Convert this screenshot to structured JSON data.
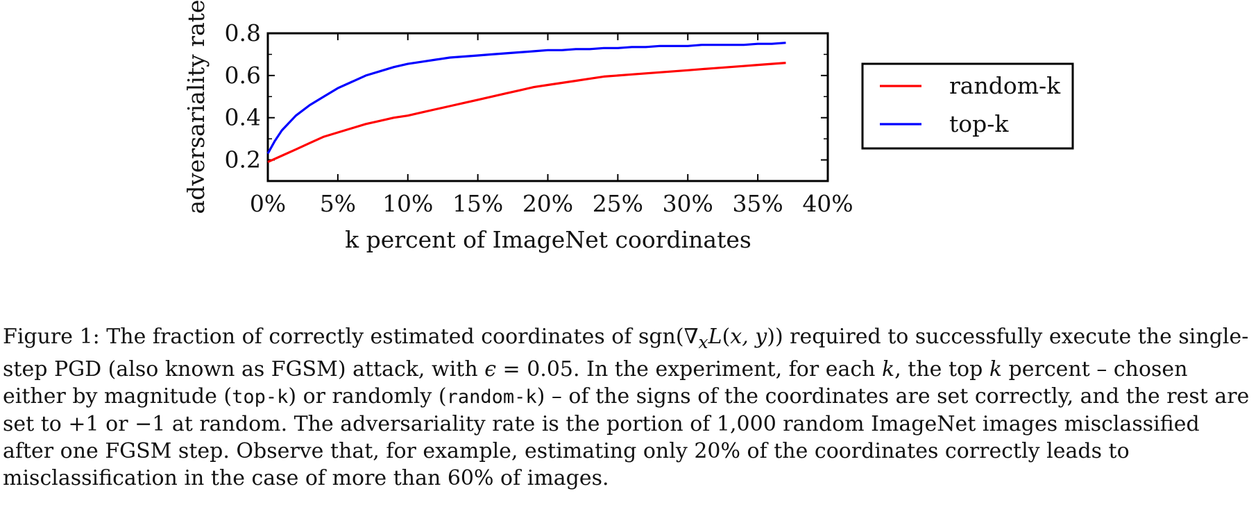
{
  "chart_data": {
    "type": "line",
    "title": "",
    "xlabel": "k percent of ImageNet coordinates",
    "ylabel": "adversariality rate",
    "xlim": [
      0,
      40
    ],
    "ylim": [
      0.1,
      0.8
    ],
    "x_ticks": [
      "0%",
      "5%",
      "10%",
      "15%",
      "20%",
      "25%",
      "30%",
      "35%",
      "40%"
    ],
    "y_ticks": [
      "0.2",
      "0.4",
      "0.6",
      "0.8"
    ],
    "grid": false,
    "legend_position": "right, outside plot",
    "series": [
      {
        "name": "random-k",
        "color": "#ff0000",
        "x": [
          0,
          1,
          2,
          3,
          4,
          5,
          6,
          7,
          8,
          9,
          10,
          11,
          12,
          13,
          14,
          15,
          16,
          17,
          18,
          19,
          20,
          21,
          22,
          23,
          24,
          25,
          26,
          27,
          28,
          29,
          30,
          31,
          32,
          33,
          34,
          35,
          36,
          37
        ],
        "values": [
          0.19,
          0.22,
          0.25,
          0.28,
          0.31,
          0.33,
          0.35,
          0.37,
          0.385,
          0.4,
          0.41,
          0.425,
          0.44,
          0.455,
          0.47,
          0.485,
          0.5,
          0.515,
          0.53,
          0.545,
          0.555,
          0.565,
          0.575,
          0.585,
          0.595,
          0.6,
          0.605,
          0.61,
          0.615,
          0.62,
          0.625,
          0.63,
          0.635,
          0.64,
          0.645,
          0.65,
          0.655,
          0.66
        ]
      },
      {
        "name": "top-k",
        "color": "#0000ff",
        "x": [
          0,
          0.5,
          1,
          2,
          3,
          4,
          5,
          6,
          7,
          8,
          9,
          10,
          11,
          12,
          13,
          14,
          15,
          16,
          17,
          18,
          19,
          20,
          21,
          22,
          23,
          24,
          25,
          26,
          27,
          28,
          29,
          30,
          31,
          32,
          33,
          34,
          35,
          36,
          37
        ],
        "values": [
          0.23,
          0.29,
          0.34,
          0.41,
          0.46,
          0.5,
          0.54,
          0.57,
          0.6,
          0.62,
          0.64,
          0.655,
          0.665,
          0.675,
          0.685,
          0.69,
          0.695,
          0.7,
          0.705,
          0.71,
          0.715,
          0.72,
          0.72,
          0.725,
          0.725,
          0.73,
          0.73,
          0.735,
          0.735,
          0.74,
          0.74,
          0.74,
          0.745,
          0.745,
          0.745,
          0.745,
          0.75,
          0.75,
          0.755
        ]
      }
    ]
  },
  "caption": {
    "p1": "Figure 1: The fraction of correctly estimated coordinates of sgn(∇",
    "p2": "x",
    "p3": "L",
    "p4": "(",
    "p5": "x, y",
    "p6": ")) required to successfully execute the single-step PGD (also known as FGSM) attack, with ",
    "p7": "ϵ",
    "p8": " = 0.05. In the experiment, for each ",
    "p9": "k",
    "p10": ", the top ",
    "p11": "k",
    "p12": " percent – chosen either by magnitude (",
    "p13": "top-k",
    "p14": ") or randomly (",
    "p15": "random-k",
    "p16": ") – of the signs of the coordinates are set correctly, and the rest are set to +1 or −1 at random. The adversariality rate is the portion of 1,000 random ImageNet images misclassified after one FGSM step. Observe that, for example, estimating only 20% of the coordinates correctly leads to misclassification in the case of more than 60% of images."
  }
}
